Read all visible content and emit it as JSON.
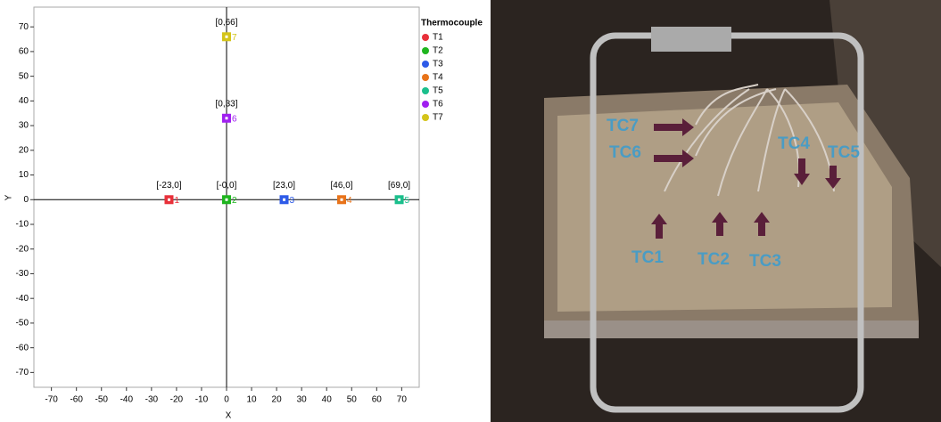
{
  "chart_data": {
    "type": "scatter",
    "x_label": "X",
    "y_label": "Y",
    "legend_title": "Thermocouple",
    "legend": "right",
    "zero_lines": true,
    "xlim": [
      -77,
      77
    ],
    "ylim": [
      -76,
      78
    ],
    "xticks": [
      -70,
      -60,
      -50,
      -40,
      -30,
      -20,
      -10,
      0,
      10,
      20,
      30,
      40,
      50,
      60,
      70
    ],
    "yticks": [
      -70,
      -60,
      -50,
      -40,
      -30,
      -20,
      -10,
      0,
      10,
      20,
      30,
      40,
      50,
      60,
      70
    ],
    "series": [
      {
        "name": "T1",
        "color": "#e8303a",
        "x": [
          -23
        ],
        "values": [
          0
        ],
        "value_labels": [
          "[-23,0]"
        ],
        "point_labels": [
          "1"
        ]
      },
      {
        "name": "T2",
        "color": "#1fb51f",
        "x": [
          0
        ],
        "values": [
          0
        ],
        "value_labels": [
          "[-0,0]"
        ],
        "point_labels": [
          "2"
        ]
      },
      {
        "name": "T3",
        "color": "#2e5be8",
        "x": [
          23
        ],
        "values": [
          0
        ],
        "value_labels": [
          "[23,0]"
        ],
        "point_labels": [
          "3"
        ]
      },
      {
        "name": "T4",
        "color": "#e8731a",
        "x": [
          46
        ],
        "values": [
          0
        ],
        "value_labels": [
          "[46,0]"
        ],
        "point_labels": [
          "4"
        ]
      },
      {
        "name": "T5",
        "color": "#1bbf8c",
        "x": [
          69
        ],
        "values": [
          0
        ],
        "value_labels": [
          "[69,0]"
        ],
        "point_labels": [
          "5"
        ]
      },
      {
        "name": "T6",
        "color": "#a020f0",
        "x": [
          0
        ],
        "values": [
          33
        ],
        "value_labels": [
          "[0,33]"
        ],
        "point_labels": [
          "6"
        ]
      },
      {
        "name": "T7",
        "color": "#d4c41a",
        "x": [
          0
        ],
        "values": [
          66
        ],
        "value_labels": [
          "[0,66]"
        ],
        "point_labels": [
          "7"
        ]
      }
    ]
  },
  "photo": {
    "labels": [
      "TC7",
      "TC6",
      "TC4",
      "TC5",
      "TC1",
      "TC2",
      "TC3"
    ]
  }
}
